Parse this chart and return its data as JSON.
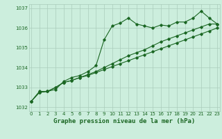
{
  "title": "Graphe pression niveau de la mer (hPa)",
  "background_color": "#cceedd",
  "grid_color": "#aaccbb",
  "line_color": "#1a6622",
  "x_values": [
    0,
    1,
    2,
    3,
    4,
    5,
    6,
    7,
    8,
    9,
    10,
    11,
    12,
    13,
    14,
    15,
    16,
    17,
    18,
    19,
    20,
    21,
    22,
    23
  ],
  "line1": [
    1032.3,
    1032.8,
    1032.8,
    1032.9,
    1033.3,
    1033.5,
    1033.6,
    1033.8,
    1034.1,
    1035.4,
    1036.1,
    1036.25,
    1036.5,
    1036.2,
    1036.1,
    1036.0,
    1036.15,
    1036.1,
    1036.3,
    1036.3,
    1036.5,
    1036.85,
    1036.5,
    1036.2
  ],
  "line2": [
    1032.3,
    1032.75,
    1032.8,
    1033.0,
    1033.25,
    1033.35,
    1033.5,
    1033.6,
    1033.75,
    1033.9,
    1034.05,
    1034.2,
    1034.35,
    1034.5,
    1034.65,
    1034.8,
    1034.95,
    1035.1,
    1035.25,
    1035.4,
    1035.55,
    1035.7,
    1035.85,
    1036.0
  ],
  "line3": [
    1032.3,
    1032.75,
    1032.8,
    1033.0,
    1033.25,
    1033.35,
    1033.5,
    1033.65,
    1033.8,
    1034.0,
    1034.2,
    1034.4,
    1034.6,
    1034.75,
    1034.9,
    1035.1,
    1035.3,
    1035.45,
    1035.6,
    1035.75,
    1035.9,
    1036.05,
    1036.2,
    1036.2
  ],
  "ylim": [
    1031.8,
    1037.2
  ],
  "yticks": [
    1032,
    1033,
    1034,
    1035,
    1036,
    1037
  ],
  "xlim": [
    -0.3,
    23.3
  ],
  "xticks": [
    0,
    1,
    2,
    3,
    4,
    5,
    6,
    7,
    8,
    9,
    10,
    11,
    12,
    13,
    14,
    15,
    16,
    17,
    18,
    19,
    20,
    21,
    22,
    23
  ],
  "marker": "D",
  "marker_size": 1.8,
  "linewidth": 0.8,
  "title_fontsize": 6.5,
  "tick_fontsize": 5.0,
  "tick_color": "#1a6622",
  "fig_width": 3.2,
  "fig_height": 2.0,
  "dpi": 100
}
